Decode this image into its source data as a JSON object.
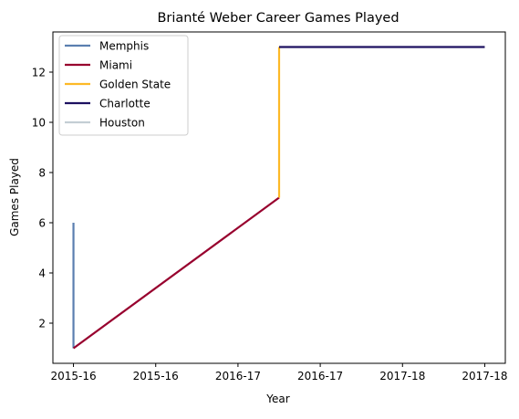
{
  "chart_data": {
    "type": "line",
    "title": "Brianté Weber Career Games Played",
    "xlabel": "Year",
    "ylabel": "Games Played",
    "xlim": [
      -0.05,
      1.05
    ],
    "ylim": [
      0.4,
      13.6
    ],
    "x_ticks": [
      {
        "pos": 0.0,
        "label": "2015-16"
      },
      {
        "pos": 0.2,
        "label": "2015-16"
      },
      {
        "pos": 0.4,
        "label": "2016-17"
      },
      {
        "pos": 0.6,
        "label": "2016-17"
      },
      {
        "pos": 0.8,
        "label": "2017-18"
      },
      {
        "pos": 1.0,
        "label": "2017-18"
      }
    ],
    "y_ticks": [
      2,
      4,
      6,
      8,
      10,
      12
    ],
    "grid": false,
    "legend_position": "upper-left",
    "series": [
      {
        "name": "Memphis",
        "color": "#5b7fb0",
        "points": [
          [
            0.0,
            6
          ],
          [
            0.0,
            1
          ]
        ]
      },
      {
        "name": "Miami",
        "color": "#98002e",
        "points": [
          [
            0.0,
            1
          ],
          [
            0.5,
            7
          ]
        ]
      },
      {
        "name": "Golden State",
        "color": "#fdb927",
        "points": [
          [
            0.5,
            7
          ],
          [
            0.5,
            13
          ]
        ]
      },
      {
        "name": "Charlotte",
        "color": "#1d1160",
        "points": [
          [
            0.5,
            13
          ],
          [
            1.0,
            13
          ]
        ]
      },
      {
        "name": "Houston",
        "color": "#c4ced4",
        "points": []
      }
    ]
  }
}
